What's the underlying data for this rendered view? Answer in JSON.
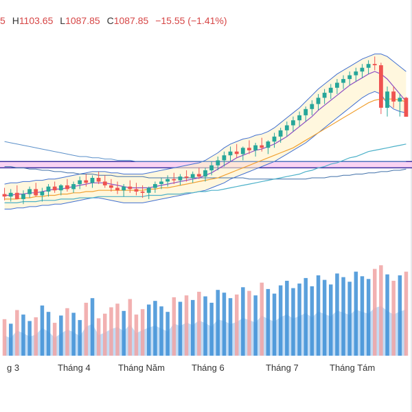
{
  "ohlc": {
    "open_tail": "5",
    "high_key": "H",
    "high": "1103.65",
    "low_key": "L",
    "low": "1087.85",
    "close_key": "C",
    "close": "1087.85",
    "change": "−15.55 (−1.41%)"
  },
  "colors": {
    "up": "#26a69a",
    "down": "#ef5350",
    "vol_base": "#3d8fd6",
    "vol_up": "#f0a3a3",
    "band_fill": "#fff2c8",
    "band_line": "#3f6fd1",
    "ma_fast": "#8d4fc4",
    "ma_mid": "#f0a030",
    "ma_slow": "#4ab0c8",
    "zone_fill": "#f7c8f0",
    "zone_line": "#3b2fa0"
  },
  "chart_data": {
    "type": "candlestick",
    "price_range": [
      1000,
      1140
    ],
    "volume_range": [
      0,
      100
    ],
    "x_tick_labels": [
      "g 3",
      "Tháng 4",
      "Tháng Năm",
      "Tháng 6",
      "Tháng 7",
      "Tháng Tám"
    ],
    "last_bar": {
      "high": 1103.65,
      "low": 1087.85,
      "close": 1087.85,
      "change": -15.55,
      "change_pct": -1.41
    },
    "candles": [
      [
        1026,
        1031,
        1021,
        1024
      ],
      [
        1024,
        1030,
        1020,
        1027
      ],
      [
        1027,
        1033,
        1022,
        1022
      ],
      [
        1022,
        1029,
        1018,
        1026
      ],
      [
        1026,
        1032,
        1023,
        1030
      ],
      [
        1030,
        1035,
        1024,
        1025
      ],
      [
        1025,
        1031,
        1020,
        1028
      ],
      [
        1028,
        1034,
        1024,
        1032
      ],
      [
        1032,
        1036,
        1027,
        1029
      ],
      [
        1029,
        1034,
        1025,
        1033
      ],
      [
        1033,
        1038,
        1028,
        1030
      ],
      [
        1030,
        1036,
        1027,
        1034
      ],
      [
        1034,
        1040,
        1030,
        1037
      ],
      [
        1037,
        1042,
        1032,
        1035
      ],
      [
        1035,
        1041,
        1031,
        1039
      ],
      [
        1039,
        1044,
        1034,
        1036
      ],
      [
        1036,
        1041,
        1031,
        1033
      ],
      [
        1033,
        1038,
        1028,
        1031
      ],
      [
        1031,
        1036,
        1026,
        1029
      ],
      [
        1029,
        1034,
        1024,
        1032
      ],
      [
        1032,
        1037,
        1027,
        1030
      ],
      [
        1030,
        1035,
        1025,
        1028
      ],
      [
        1028,
        1033,
        1023,
        1027
      ],
      [
        1027,
        1032,
        1022,
        1031
      ],
      [
        1031,
        1036,
        1027,
        1034
      ],
      [
        1034,
        1039,
        1030,
        1036
      ],
      [
        1036,
        1041,
        1032,
        1038
      ],
      [
        1038,
        1043,
        1034,
        1037
      ],
      [
        1037,
        1042,
        1033,
        1040
      ],
      [
        1040,
        1045,
        1036,
        1039
      ],
      [
        1039,
        1044,
        1035,
        1042
      ],
      [
        1042,
        1047,
        1038,
        1040
      ],
      [
        1040,
        1047,
        1036,
        1045
      ],
      [
        1045,
        1052,
        1041,
        1049
      ],
      [
        1049,
        1056,
        1045,
        1053
      ],
      [
        1053,
        1060,
        1048,
        1057
      ],
      [
        1057,
        1064,
        1052,
        1060
      ],
      [
        1060,
        1066,
        1055,
        1058
      ],
      [
        1058,
        1064,
        1053,
        1063
      ],
      [
        1063,
        1069,
        1058,
        1061
      ],
      [
        1061,
        1067,
        1056,
        1065
      ],
      [
        1065,
        1071,
        1060,
        1063
      ],
      [
        1063,
        1069,
        1058,
        1068
      ],
      [
        1068,
        1075,
        1063,
        1072
      ],
      [
        1072,
        1079,
        1067,
        1077
      ],
      [
        1077,
        1084,
        1072,
        1081
      ],
      [
        1081,
        1088,
        1076,
        1085
      ],
      [
        1085,
        1092,
        1080,
        1089
      ],
      [
        1089,
        1096,
        1084,
        1094
      ],
      [
        1094,
        1101,
        1089,
        1098
      ],
      [
        1098,
        1106,
        1093,
        1103
      ],
      [
        1103,
        1110,
        1098,
        1107
      ],
      [
        1107,
        1114,
        1102,
        1111
      ],
      [
        1111,
        1118,
        1106,
        1115
      ],
      [
        1115,
        1121,
        1110,
        1118
      ],
      [
        1118,
        1124,
        1113,
        1121
      ],
      [
        1121,
        1127,
        1116,
        1124
      ],
      [
        1124,
        1130,
        1119,
        1127
      ],
      [
        1127,
        1133,
        1122,
        1130
      ],
      [
        1130,
        1136,
        1125,
        1129
      ],
      [
        1129,
        1131,
        1090,
        1095
      ],
      [
        1095,
        1112,
        1088,
        1108
      ],
      [
        1108,
        1112,
        1095,
        1100
      ],
      [
        1100,
        1106,
        1088,
        1103
      ],
      [
        1103,
        1103.65,
        1087.85,
        1087.85
      ]
    ],
    "volumes": [
      40,
      35,
      50,
      45,
      38,
      42,
      55,
      48,
      36,
      44,
      52,
      47,
      39,
      58,
      63,
      41,
      46,
      53,
      57,
      49,
      62,
      45,
      51,
      56,
      60,
      54,
      48,
      64,
      59,
      66,
      61,
      70,
      65,
      58,
      72,
      69,
      63,
      67,
      75,
      71,
      66,
      80,
      73,
      68,
      77,
      82,
      74,
      79,
      85,
      76,
      88,
      83,
      78,
      90,
      86,
      81,
      92,
      87,
      84,
      95,
      99,
      89,
      82,
      88,
      92
    ],
    "bollinger_upper": [
      1034,
      1035,
      1035,
      1036,
      1036,
      1037,
      1037,
      1038,
      1038,
      1039,
      1040,
      1041,
      1042,
      1043,
      1044,
      1044,
      1044,
      1043,
      1043,
      1042,
      1042,
      1042,
      1042,
      1043,
      1044,
      1045,
      1046,
      1047,
      1048,
      1049,
      1050,
      1051,
      1053,
      1056,
      1059,
      1063,
      1066,
      1068,
      1070,
      1071,
      1073,
      1074,
      1076,
      1079,
      1083,
      1087,
      1091,
      1095,
      1100,
      1105,
      1110,
      1114,
      1118,
      1122,
      1125,
      1128,
      1131,
      1134,
      1136,
      1138,
      1138,
      1136,
      1132,
      1128,
      1124
    ],
    "bollinger_lower": [
      1014,
      1014,
      1015,
      1015,
      1016,
      1016,
      1017,
      1017,
      1018,
      1018,
      1019,
      1020,
      1021,
      1022,
      1023,
      1023,
      1022,
      1021,
      1020,
      1019,
      1019,
      1019,
      1019,
      1020,
      1021,
      1022,
      1023,
      1024,
      1025,
      1026,
      1027,
      1028,
      1029,
      1031,
      1033,
      1035,
      1038,
      1040,
      1042,
      1044,
      1046,
      1048,
      1050,
      1052,
      1055,
      1058,
      1061,
      1064,
      1067,
      1071,
      1075,
      1079,
      1083,
      1087,
      1091,
      1095,
      1099,
      1103,
      1106,
      1108,
      1106,
      1098,
      1094,
      1092,
      1091
    ],
    "ma_fast": [
      1025,
      1025,
      1026,
      1026,
      1027,
      1027,
      1028,
      1029,
      1030,
      1030,
      1031,
      1032,
      1033,
      1034,
      1035,
      1035,
      1035,
      1034,
      1033,
      1032,
      1031,
      1031,
      1031,
      1031,
      1032,
      1033,
      1034,
      1035,
      1036,
      1037,
      1038,
      1039,
      1041,
      1043,
      1046,
      1049,
      1052,
      1055,
      1057,
      1059,
      1061,
      1062,
      1064,
      1066,
      1069,
      1072,
      1076,
      1080,
      1084,
      1088,
      1093,
      1097,
      1101,
      1105,
      1109,
      1113,
      1116,
      1119,
      1122,
      1124,
      1122,
      1118,
      1112,
      1106,
      1100
    ],
    "ma_mid": [
      1022,
      1022,
      1022,
      1023,
      1023,
      1024,
      1024,
      1025,
      1025,
      1026,
      1026,
      1027,
      1027,
      1028,
      1028,
      1029,
      1029,
      1029,
      1029,
      1029,
      1029,
      1029,
      1029,
      1030,
      1030,
      1031,
      1031,
      1032,
      1033,
      1034,
      1035,
      1036,
      1037,
      1038,
      1039,
      1041,
      1043,
      1045,
      1047,
      1049,
      1051,
      1053,
      1055,
      1057,
      1059,
      1061,
      1063,
      1066,
      1069,
      1072,
      1075,
      1078,
      1081,
      1084,
      1087,
      1090,
      1093,
      1096,
      1099,
      1101,
      1102,
      1102,
      1102,
      1101,
      1100
    ],
    "ma_slow": [
      1019,
      1019,
      1019,
      1020,
      1020,
      1020,
      1021,
      1021,
      1021,
      1022,
      1022,
      1022,
      1023,
      1023,
      1023,
      1024,
      1024,
      1024,
      1024,
      1024,
      1024,
      1024,
      1024,
      1025,
      1025,
      1025,
      1026,
      1026,
      1026,
      1027,
      1027,
      1028,
      1028,
      1029,
      1029,
      1030,
      1031,
      1032,
      1033,
      1034,
      1035,
      1036,
      1037,
      1038,
      1039,
      1040,
      1041,
      1042,
      1044,
      1045,
      1047,
      1048,
      1050,
      1051,
      1053,
      1055,
      1056,
      1058,
      1060,
      1061,
      1062,
      1063,
      1064,
      1065,
      1066
    ],
    "long_line_1": [
      1068,
      1067,
      1066,
      1065,
      1064,
      1063,
      1062,
      1061,
      1060,
      1059,
      1058,
      1057,
      1056,
      1056,
      1055,
      1055,
      1054,
      1054,
      1053,
      1053,
      1053,
      1052,
      1052,
      1052,
      1052,
      1052,
      1052,
      1052,
      1052,
      1052,
      1052,
      1052,
      1052,
      1052,
      1052,
      1052,
      1052,
      1052,
      1052,
      1052,
      1052,
      1052,
      1052,
      1052,
      1052,
      1052,
      1052,
      1052,
      1052,
      1052,
      1052,
      1052,
      1052,
      1052,
      1052,
      1052,
      1052,
      1052,
      1052,
      1052,
      1052,
      1052,
      1052,
      1052,
      1052
    ],
    "long_line_2": [
      1048,
      1048,
      1047,
      1047,
      1046,
      1046,
      1045,
      1045,
      1044,
      1044,
      1043,
      1043,
      1042,
      1042,
      1042,
      1041,
      1041,
      1041,
      1040,
      1040,
      1040,
      1040,
      1040,
      1039,
      1039,
      1039,
      1039,
      1039,
      1039,
      1039,
      1039,
      1039,
      1039,
      1039,
      1039,
      1039,
      1039,
      1039,
      1039,
      1038,
      1038,
      1038,
      1038,
      1038,
      1038,
      1038,
      1038,
      1038,
      1038,
      1039,
      1039,
      1039,
      1040,
      1040,
      1041,
      1041,
      1042,
      1042,
      1043,
      1043,
      1044,
      1044,
      1045,
      1045,
      1046
    ],
    "zone": {
      "low": 1047,
      "high": 1052
    }
  }
}
